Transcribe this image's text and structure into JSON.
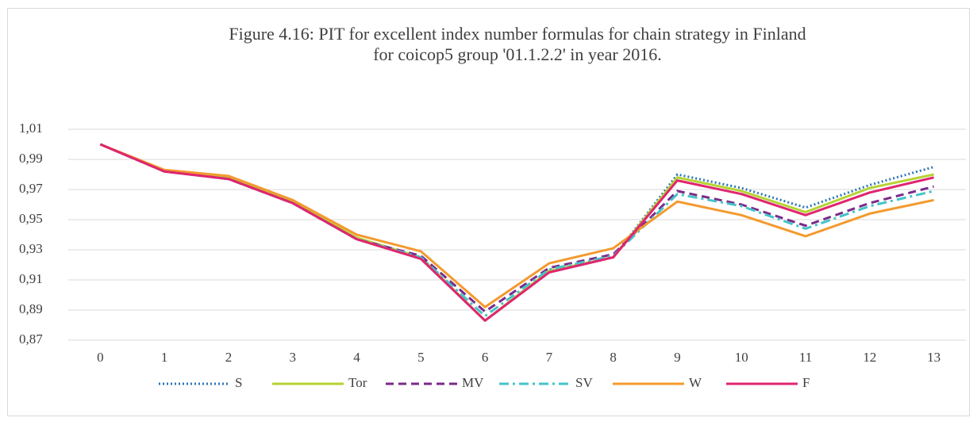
{
  "chart_data": {
    "type": "line",
    "title": [
      "Figure 4.16: PIT for excellent index number formulas for chain strategy in Finland",
      "for coicop5 group '01.1.2.2' in year 2016."
    ],
    "categories": [
      "0",
      "1",
      "2",
      "3",
      "4",
      "5",
      "6",
      "7",
      "8",
      "9",
      "10",
      "11",
      "12",
      "13"
    ],
    "ylim": [
      0.87,
      1.01
    ],
    "yticks": [
      {
        "value": 0.87,
        "label": "0,87"
      },
      {
        "value": 0.89,
        "label": "0,89"
      },
      {
        "value": 0.91,
        "label": "0,91"
      },
      {
        "value": 0.93,
        "label": "0,93"
      },
      {
        "value": 0.95,
        "label": "0,95"
      },
      {
        "value": 0.97,
        "label": "0,97"
      },
      {
        "value": 0.99,
        "label": "0,99"
      },
      {
        "value": 1.01,
        "label": "1,01"
      }
    ],
    "grid": true,
    "legend": "bottom",
    "series": [
      {
        "name": "S",
        "color": "#2e75b6",
        "dash": "dotted",
        "values": [
          1.0,
          0.982,
          0.977,
          0.961,
          0.937,
          0.924,
          0.883,
          0.916,
          0.925,
          0.98,
          0.971,
          0.958,
          0.973,
          0.985
        ]
      },
      {
        "name": "Tor",
        "color": "#b5d334",
        "dash": "solid",
        "values": [
          1.0,
          0.982,
          0.978,
          0.962,
          0.938,
          0.925,
          0.883,
          0.916,
          0.925,
          0.978,
          0.969,
          0.955,
          0.971,
          0.98
        ]
      },
      {
        "name": "MV",
        "color": "#7b2a8a",
        "dash": "dashed",
        "values": [
          1.0,
          0.982,
          0.977,
          0.961,
          0.937,
          0.926,
          0.889,
          0.918,
          0.927,
          0.969,
          0.96,
          0.946,
          0.961,
          0.972
        ]
      },
      {
        "name": "SV",
        "color": "#45c3c8",
        "dash": "dashdot",
        "values": [
          1.0,
          0.982,
          0.977,
          0.961,
          0.937,
          0.925,
          0.886,
          0.917,
          0.926,
          0.967,
          0.959,
          0.944,
          0.959,
          0.969
        ]
      },
      {
        "name": "W",
        "color": "#f39a2e",
        "dash": "solid",
        "values": [
          1.0,
          0.983,
          0.979,
          0.963,
          0.94,
          0.929,
          0.892,
          0.921,
          0.931,
          0.962,
          0.953,
          0.939,
          0.954,
          0.963
        ]
      },
      {
        "name": "F",
        "color": "#e0256f",
        "dash": "solid",
        "values": [
          1.0,
          0.982,
          0.977,
          0.961,
          0.937,
          0.924,
          0.883,
          0.915,
          0.925,
          0.976,
          0.967,
          0.953,
          0.968,
          0.978
        ]
      }
    ]
  }
}
